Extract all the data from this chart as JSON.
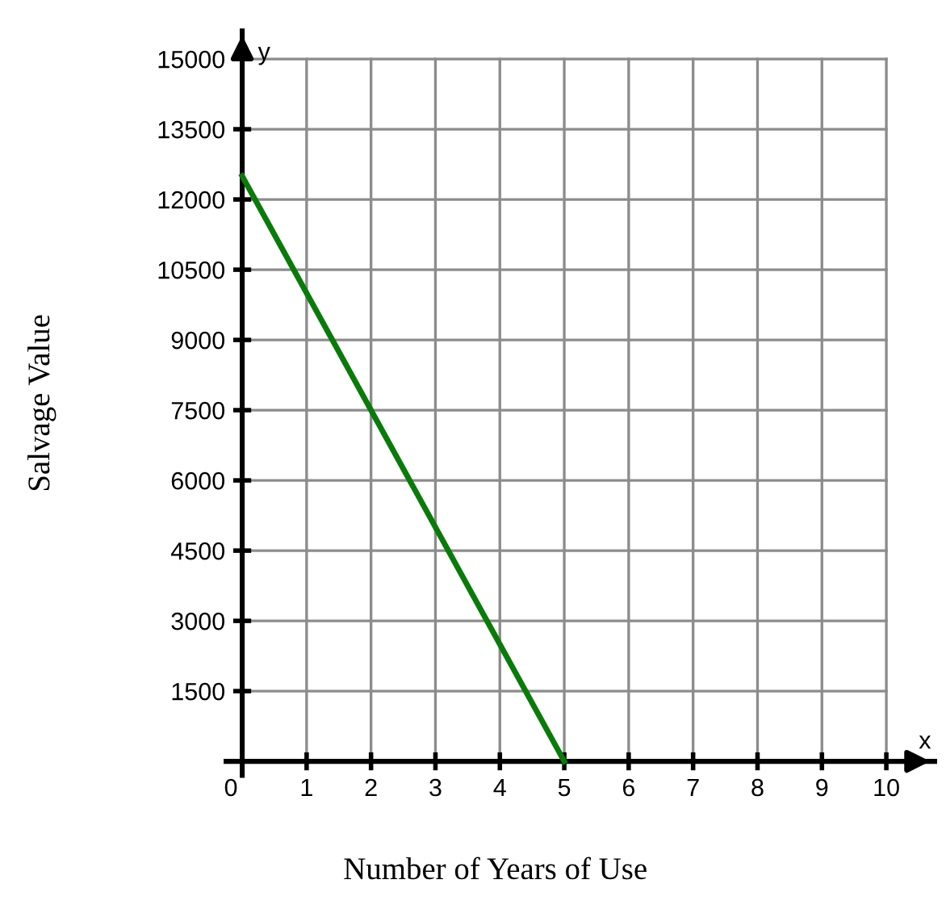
{
  "chart_data": {
    "type": "line",
    "xlabel": "Number of Years of Use",
    "ylabel": "Salvage Value",
    "x": [
      0,
      5
    ],
    "series": [
      {
        "color": "#0a7a0a",
        "values": [
          12500,
          0
        ]
      }
    ],
    "xlim": [
      -0.25,
      10.75
    ],
    "ylim": [
      -300,
      15600
    ],
    "xticks": [
      0,
      1,
      2,
      3,
      4,
      5,
      6,
      7,
      8,
      9,
      10
    ],
    "yticks": [
      1500,
      3000,
      4500,
      6000,
      7500,
      9000,
      10500,
      12000,
      13500,
      15000
    ],
    "grid": true,
    "legend": false,
    "marker": "none",
    "line_style": "solid",
    "annotations": [
      "x",
      "y"
    ]
  }
}
